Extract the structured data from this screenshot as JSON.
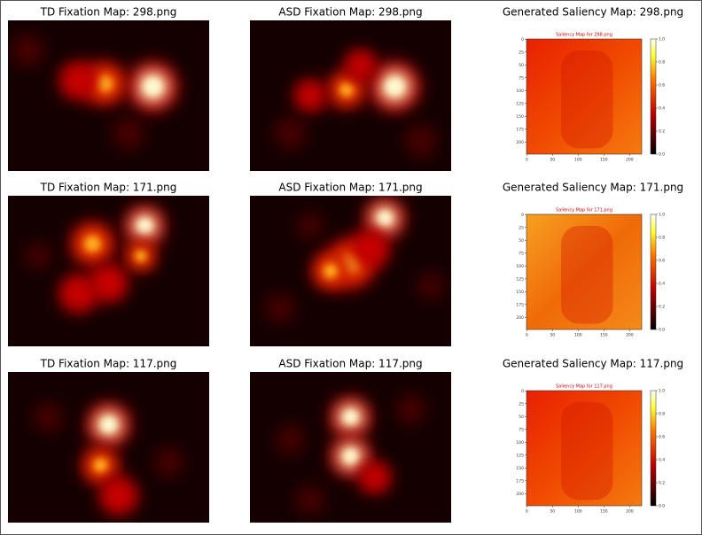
{
  "rows": [
    {
      "td_title": "TD Fixation Map: 298.png",
      "asd_title": "ASD Fixation Map: 298.png",
      "gen_title": "Generated Saliency Map: 298.png",
      "inner_title": "Saliency Map for 298.png"
    },
    {
      "td_title": "TD Fixation Map: 171.png",
      "asd_title": "ASD Fixation Map: 171.png",
      "gen_title": "Generated Saliency Map: 171.png",
      "inner_title": "Saliency Map for 171.png"
    },
    {
      "td_title": "TD Fixation Map: 117.png",
      "asd_title": "ASD Fixation Map: 117.png",
      "gen_title": "Generated Saliency Map: 117.png",
      "inner_title": "Saliency Map for 117.png"
    }
  ],
  "saliency_yticks": [
    "0",
    "25",
    "50",
    "75",
    "100",
    "125",
    "150",
    "175",
    "200"
  ],
  "saliency_xticks": [
    "0",
    "50",
    "100",
    "150",
    "200"
  ],
  "colorbar_ticks": [
    "0.0",
    "0.2",
    "0.4",
    "0.6",
    "0.8",
    "1.0"
  ]
}
